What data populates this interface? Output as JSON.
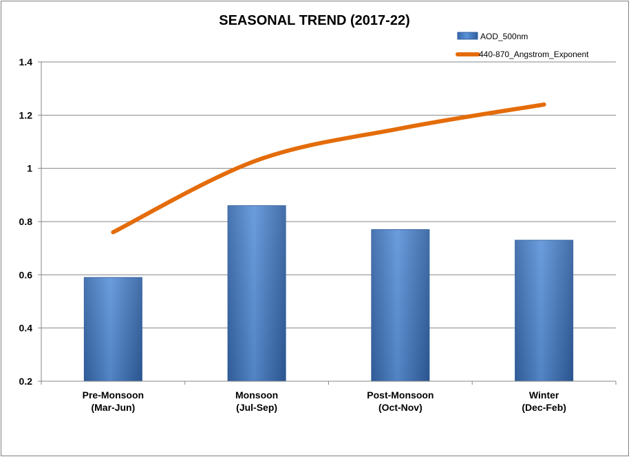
{
  "chart_data": {
    "type": "bar",
    "title": "SEASONAL TREND (2017-22)",
    "xlabel": "",
    "ylabel": "",
    "ylim": [
      0.2,
      1.4
    ],
    "yticks": [
      "0.2",
      "0.4",
      "0.6",
      "0.8",
      "1",
      "1.2",
      "1.4"
    ],
    "ytick_values": [
      0.2,
      0.4,
      0.6,
      0.8,
      1.0,
      1.2,
      1.4
    ],
    "grid": true,
    "legend_position": "top-right",
    "categories": [
      [
        "Pre-Monsoon",
        "(Mar-Jun)"
      ],
      [
        "Monsoon",
        "(Jul-Sep)"
      ],
      [
        "Post-Monsoon",
        "(Oct-Nov)"
      ],
      [
        "Winter",
        "(Dec-Feb)"
      ]
    ],
    "series": [
      {
        "name": "AOD_500nm",
        "type": "bar",
        "color": "#4a7ebb",
        "values": [
          0.59,
          0.86,
          0.77,
          0.73
        ]
      },
      {
        "name": "440-870_Angstrom_Exponent",
        "type": "line",
        "color": "#e46c0a",
        "values": [
          0.76,
          1.03,
          1.15,
          1.24
        ]
      }
    ]
  }
}
